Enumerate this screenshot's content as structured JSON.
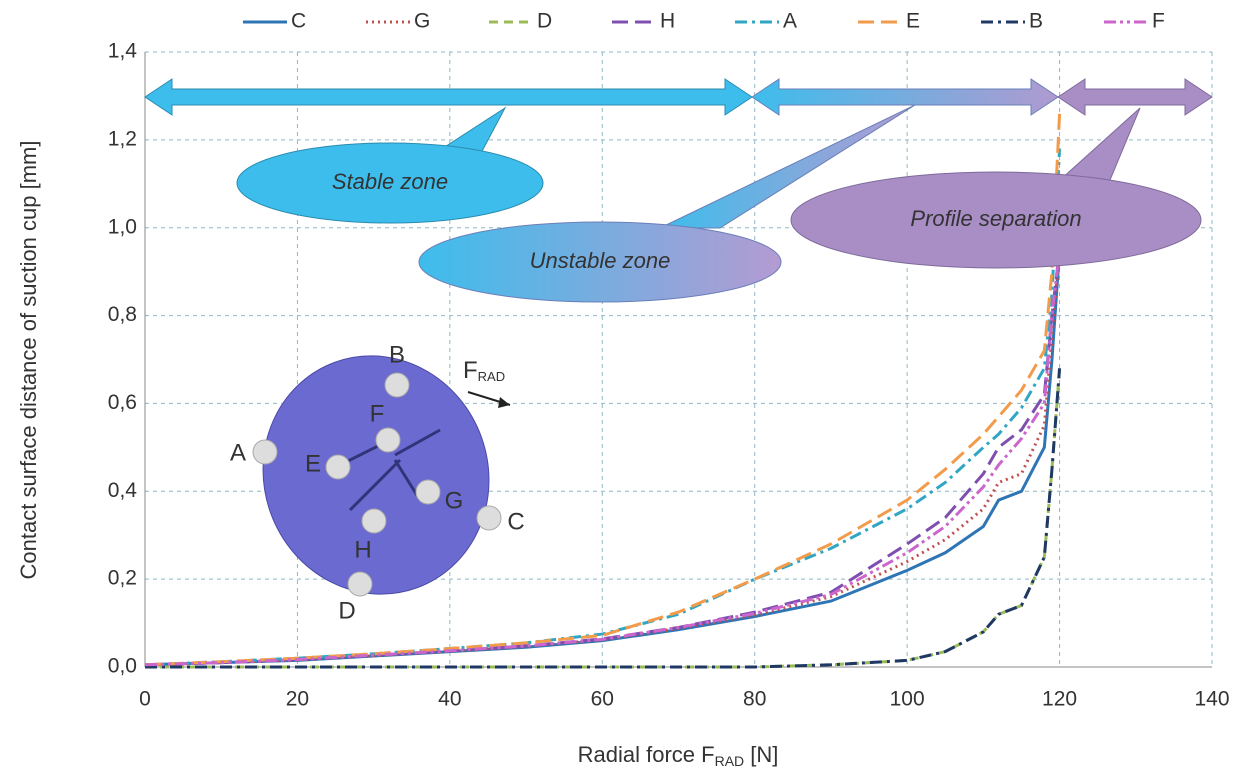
{
  "chart_data": {
    "type": "line",
    "y_label": "Contact surface distance of suction cup [mm]",
    "x_label": "Radial force F",
    "x_label_sub": "RAD",
    "x_label_suffix": " [N]",
    "annotations": [
      "Stable zone",
      "Unstable zone",
      "Profile separation"
    ],
    "inset": {
      "points": [
        "A",
        "B",
        "C",
        "D",
        "E",
        "F",
        "G",
        "H"
      ],
      "force": "F",
      "force_sub": "RAD"
    },
    "x": [
      0,
      10,
      20,
      30,
      40,
      50,
      60,
      70,
      80,
      90,
      100,
      105,
      110,
      112,
      115,
      118,
      119,
      120
    ],
    "series": [
      {
        "name": "C",
        "color": "#2e75b6",
        "style": "solid",
        "values": [
          0.005,
          0.01,
          0.015,
          0.025,
          0.035,
          0.045,
          0.06,
          0.085,
          0.115,
          0.15,
          0.22,
          0.26,
          0.32,
          0.38,
          0.4,
          0.5,
          0.7,
          0.95
        ]
      },
      {
        "name": "G",
        "color": "#c0504d",
        "style": "dotted",
        "values": [
          0.005,
          0.01,
          0.016,
          0.026,
          0.036,
          0.047,
          0.062,
          0.088,
          0.118,
          0.16,
          0.24,
          0.29,
          0.36,
          0.42,
          0.44,
          0.55,
          0.75,
          0.95
        ]
      },
      {
        "name": "D",
        "color": "#9bbb59",
        "style": "dashed",
        "values": [
          0,
          0,
          0,
          0,
          0,
          0,
          0,
          0,
          0,
          0.005,
          0.015,
          0.035,
          0.08,
          0.12,
          0.14,
          0.25,
          0.45,
          0.68
        ]
      },
      {
        "name": "H",
        "color": "#7f4fb0",
        "style": "long-dash",
        "values": [
          0.005,
          0.01,
          0.017,
          0.027,
          0.037,
          0.048,
          0.064,
          0.09,
          0.125,
          0.17,
          0.28,
          0.34,
          0.44,
          0.5,
          0.54,
          0.62,
          0.8,
          0.95
        ]
      },
      {
        "name": "A",
        "color": "#31a6c4",
        "style": "dash-dot",
        "values": [
          0.005,
          0.012,
          0.02,
          0.03,
          0.042,
          0.055,
          0.075,
          0.12,
          0.2,
          0.27,
          0.36,
          0.42,
          0.5,
          0.53,
          0.59,
          0.68,
          0.85,
          1.18
        ]
      },
      {
        "name": "E",
        "color": "#f29b4a",
        "style": "long-dash",
        "values": [
          0.005,
          0.012,
          0.02,
          0.03,
          0.042,
          0.055,
          0.072,
          0.125,
          0.2,
          0.28,
          0.38,
          0.45,
          0.53,
          0.57,
          0.63,
          0.72,
          0.9,
          1.26
        ]
      },
      {
        "name": "B",
        "color": "#1f3864",
        "style": "dash-dot",
        "values": [
          0,
          0,
          0,
          0,
          0,
          0,
          0,
          0,
          0,
          0.005,
          0.015,
          0.035,
          0.08,
          0.12,
          0.14,
          0.25,
          0.45,
          0.68
        ]
      },
      {
        "name": "F",
        "color": "#cc66cc",
        "style": "dash-dot-dot",
        "values": [
          0.005,
          0.01,
          0.017,
          0.027,
          0.037,
          0.048,
          0.063,
          0.09,
          0.122,
          0.165,
          0.26,
          0.32,
          0.41,
          0.46,
          0.52,
          0.6,
          0.8,
          0.95
        ]
      }
    ],
    "xlim": [
      0,
      140
    ],
    "xticks": [
      0,
      20,
      40,
      60,
      80,
      100,
      120,
      140
    ],
    "ylim": [
      0,
      1.4
    ],
    "yticks": [
      {
        "value": 0,
        "label": "0,0"
      },
      {
        "value": 0.2,
        "label": "0,2"
      },
      {
        "value": 0.4,
        "label": "0,4"
      },
      {
        "value": 0.6,
        "label": "0,6"
      },
      {
        "value": 0.8,
        "label": "0,8"
      },
      {
        "value": 1.0,
        "label": "1,0"
      },
      {
        "value": 1.2,
        "label": "1,2"
      },
      {
        "value": 1.4,
        "label": "1,4"
      }
    ],
    "grid": true
  }
}
